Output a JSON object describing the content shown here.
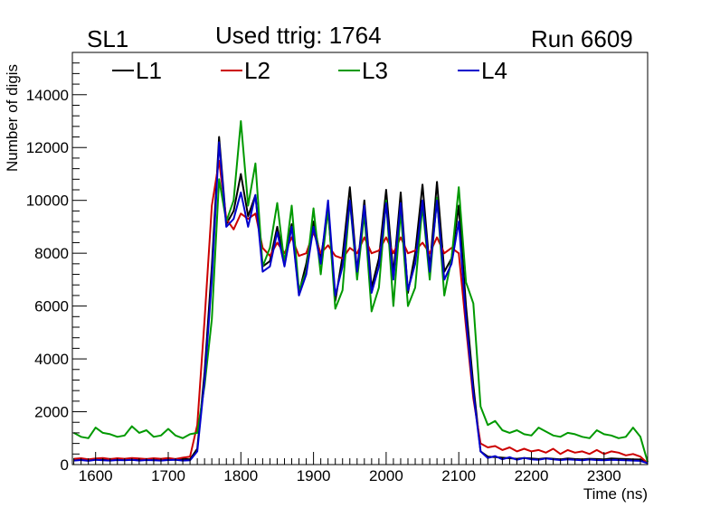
{
  "header": {
    "left_label": "SL1",
    "center_label": "Used ttrig: 1764",
    "right_label": "Run 6609"
  },
  "chart_data": {
    "type": "line",
    "title": "Used ttrig: 1764",
    "xlabel": "Time (ns)",
    "ylabel": "Number of digis",
    "xlim": [
      1568,
      2360
    ],
    "ylim": [
      0,
      15600
    ],
    "xticks": [
      1600,
      1700,
      1800,
      1900,
      2000,
      2100,
      2200,
      2300
    ],
    "yticks": [
      0,
      2000,
      4000,
      6000,
      8000,
      10000,
      12000,
      14000
    ],
    "legend_position": "top",
    "x": [
      1570,
      1580,
      1590,
      1600,
      1610,
      1620,
      1630,
      1640,
      1650,
      1660,
      1670,
      1680,
      1690,
      1700,
      1710,
      1720,
      1730,
      1740,
      1750,
      1760,
      1770,
      1780,
      1790,
      1800,
      1810,
      1820,
      1830,
      1840,
      1850,
      1860,
      1870,
      1880,
      1890,
      1900,
      1910,
      1920,
      1930,
      1940,
      1950,
      1960,
      1970,
      1980,
      1990,
      2000,
      2010,
      2020,
      2030,
      2040,
      2050,
      2060,
      2070,
      2080,
      2090,
      2100,
      2110,
      2120,
      2130,
      2140,
      2150,
      2160,
      2170,
      2180,
      2190,
      2200,
      2210,
      2220,
      2230,
      2240,
      2250,
      2260,
      2270,
      2280,
      2290,
      2300,
      2310,
      2320,
      2330,
      2340,
      2350,
      2360
    ],
    "series": [
      {
        "name": "L1",
        "color": "#000000",
        "values": [
          200,
          180,
          160,
          220,
          190,
          210,
          180,
          200,
          170,
          190,
          210,
          160,
          200,
          180,
          190,
          220,
          200,
          600,
          3500,
          7500,
          12400,
          9100,
          9600,
          11000,
          9400,
          10200,
          7500,
          7700,
          9000,
          7700,
          9100,
          6500,
          7600,
          9200,
          7800,
          9600,
          6200,
          7900,
          10500,
          7300,
          10000,
          6700,
          7800,
          10400,
          7200,
          10300,
          6500,
          8000,
          10600,
          7400,
          10700,
          7300,
          7800,
          9800,
          6000,
          3000,
          500,
          300,
          280,
          260,
          240,
          220,
          250,
          230,
          210,
          240,
          220,
          200,
          230,
          210,
          200,
          220,
          210,
          200,
          230,
          220,
          210,
          200,
          190,
          60
        ]
      },
      {
        "name": "L2",
        "color": "#cc0000",
        "values": [
          220,
          240,
          200,
          230,
          250,
          210,
          240,
          220,
          250,
          230,
          210,
          240,
          220,
          250,
          210,
          260,
          300,
          1500,
          5500,
          9800,
          11500,
          9300,
          8900,
          9500,
          9300,
          9500,
          8200,
          7900,
          8400,
          8000,
          8600,
          7900,
          8000,
          8800,
          8000,
          8300,
          7900,
          7800,
          8200,
          8000,
          8600,
          8000,
          8100,
          8600,
          8000,
          8600,
          8000,
          8100,
          8400,
          8000,
          8600,
          8000,
          8200,
          8000,
          5200,
          2500,
          800,
          650,
          700,
          550,
          650,
          500,
          600,
          500,
          550,
          450,
          600,
          400,
          550,
          450,
          500,
          400,
          550,
          400,
          500,
          450,
          350,
          400,
          300,
          50
        ]
      },
      {
        "name": "L3",
        "color": "#009900",
        "values": [
          1200,
          1050,
          1000,
          1400,
          1200,
          1150,
          1050,
          1100,
          1450,
          1200,
          1300,
          1050,
          1100,
          1350,
          1100,
          1000,
          1150,
          1200,
          3000,
          5500,
          10800,
          9200,
          10000,
          13000,
          9800,
          11400,
          7500,
          8200,
          9900,
          7600,
          9800,
          6600,
          7300,
          9700,
          7200,
          9700,
          5900,
          6600,
          10000,
          7000,
          9500,
          5800,
          6700,
          10000,
          6000,
          9600,
          6000,
          6700,
          9800,
          7000,
          10100,
          6400,
          7800,
          10500,
          6900,
          6100,
          2200,
          1500,
          1650,
          1300,
          1200,
          1300,
          1150,
          1100,
          1400,
          1250,
          1100,
          1050,
          1200,
          1150,
          1050,
          1000,
          1300,
          1150,
          1100,
          1000,
          1050,
          1400,
          1050,
          100
        ]
      },
      {
        "name": "L4",
        "color": "#0000cc",
        "values": [
          150,
          170,
          140,
          180,
          160,
          150,
          170,
          160,
          180,
          150,
          170,
          160,
          150,
          170,
          180,
          150,
          160,
          500,
          3200,
          7000,
          12200,
          9000,
          9300,
          10300,
          9000,
          10200,
          7300,
          7500,
          8800,
          7500,
          9000,
          6400,
          7200,
          9000,
          7600,
          10000,
          6400,
          7500,
          10000,
          7300,
          9800,
          6500,
          7500,
          9900,
          7000,
          9900,
          6600,
          7600,
          10000,
          7300,
          10000,
          7000,
          7600,
          9200,
          5500,
          2700,
          500,
          250,
          320,
          200,
          280,
          180,
          250,
          200,
          180,
          230,
          200,
          170,
          200,
          180,
          160,
          190,
          170,
          160,
          180,
          170,
          160,
          150,
          140,
          50
        ]
      }
    ]
  }
}
